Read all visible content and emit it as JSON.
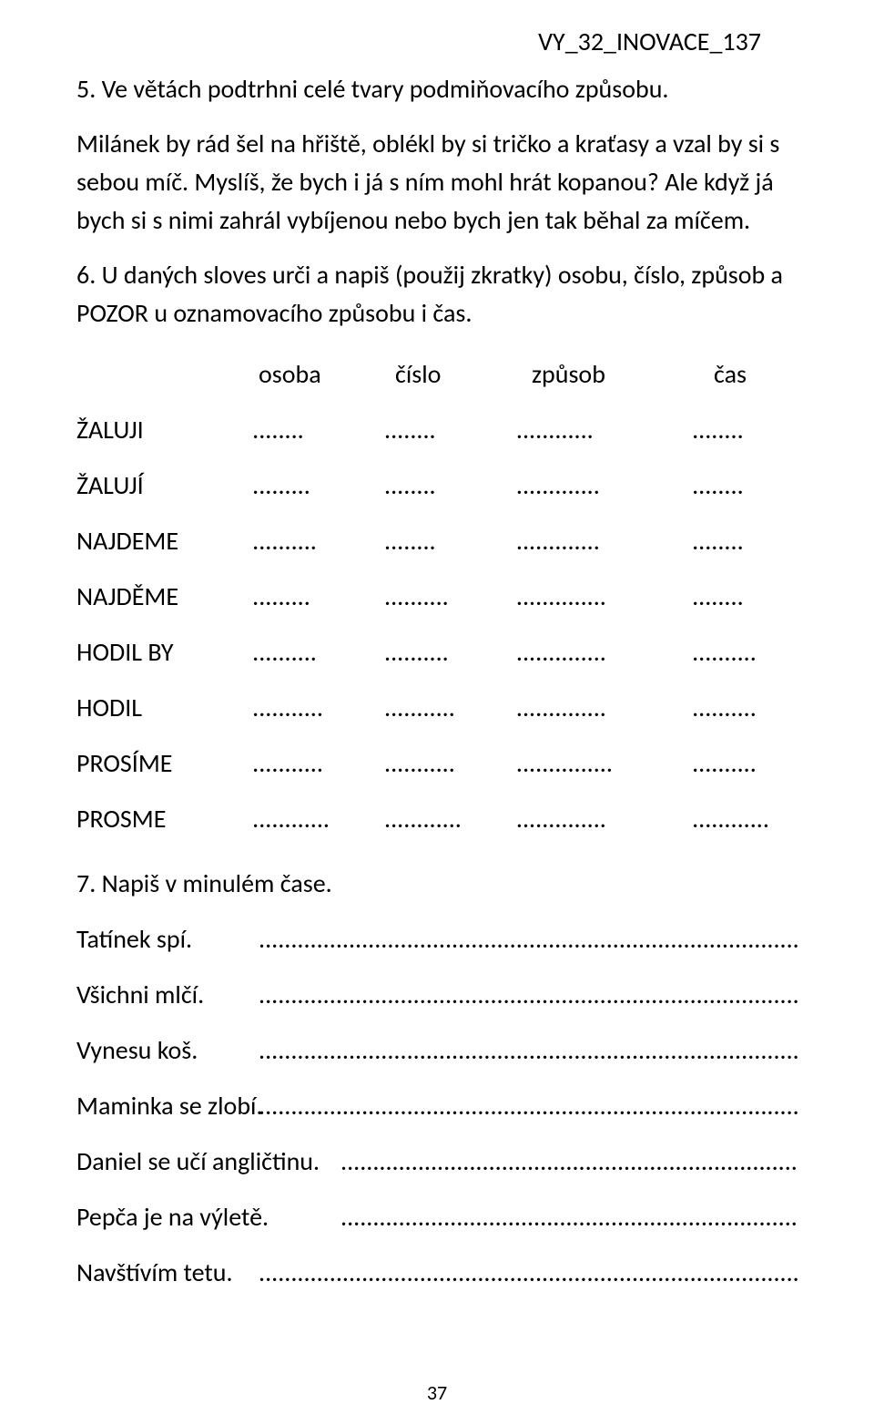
{
  "header": {
    "code": "VY_32_INOVACE_137"
  },
  "ex5": {
    "title": "5. Ve větách podtrhni celé tvary podmiňovacího způsobu.",
    "text": "Milánek by rád šel na hřiště, oblékl by si tričko a kraťasy a vzal by si s sebou míč. Myslíš, že bych i já s ním mohl hrát kopanou? Ale když já bych si s nimi zahrál vybíjenou nebo bych jen tak běhal za míčem."
  },
  "ex6": {
    "title": "6. U daných sloves urči a napiš (použij zkratky) osobu, číslo, způsob a POZOR u oznamovacího způsobu i čas.",
    "headers": [
      "osoba",
      "číslo",
      "způsob",
      "čas"
    ],
    "rows": [
      {
        "label": "ŽALUJI",
        "d": [
          "........",
          "........",
          "............",
          "........"
        ]
      },
      {
        "label": "ŽALUJÍ",
        "d": [
          ".........",
          "........",
          ".............",
          "........"
        ]
      },
      {
        "label": "NAJDEME",
        "d": [
          "..........",
          "........",
          ".............",
          "........"
        ]
      },
      {
        "label": "NAJDĚME",
        "d": [
          ".........",
          "..........",
          "..............",
          "........"
        ]
      },
      {
        "label": "HODIL BY",
        "d": [
          "..........",
          "..........",
          "..............",
          ".........."
        ]
      },
      {
        "label": "HODIL",
        "d": [
          "...........",
          "...........",
          "..............",
          ".........."
        ]
      },
      {
        "label": "PROSÍME",
        "d": [
          "...........",
          "...........",
          "...............",
          ".........."
        ]
      },
      {
        "label": "PROSME",
        "d": [
          "............",
          "............",
          "..............",
          "............"
        ]
      }
    ]
  },
  "ex7": {
    "title": "7. Napiš v minulém čase.",
    "long_dots": "...............................................................................................",
    "rows": [
      {
        "label": "Tatínek spí.",
        "wide": false
      },
      {
        "label": "Všichni mlčí.",
        "wide": false
      },
      {
        "label": "Vynesu koš.",
        "wide": false
      },
      {
        "label": "Maminka se zlobí.",
        "wide": false
      },
      {
        "label": "Daniel se učí angličtinu.",
        "wide": true
      },
      {
        "label": "Pepča je na výletě.",
        "wide": true
      },
      {
        "label": "Navštívím tetu.",
        "wide": false
      }
    ]
  },
  "page_number": "37",
  "colors": {
    "text": "#000000",
    "background": "#ffffff"
  },
  "fonts": {
    "body_size_pt": 21
  }
}
